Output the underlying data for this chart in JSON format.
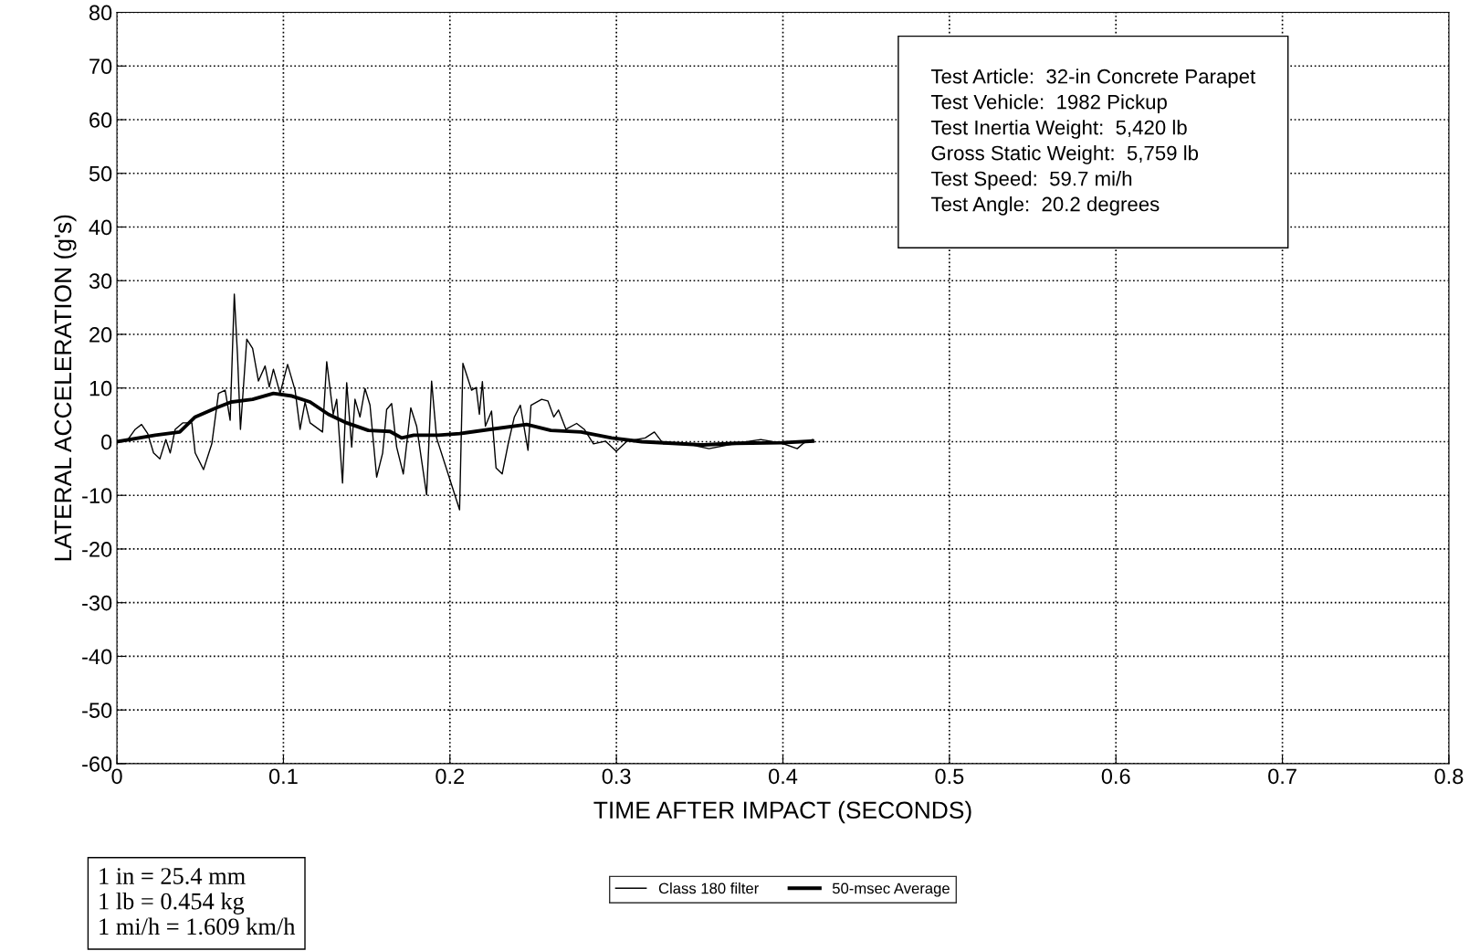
{
  "chart_data": {
    "type": "line",
    "xlabel": "TIME AFTER IMPACT (SECONDS)",
    "ylabel": "LATERAL ACCELERATION (g's)",
    "xlim": [
      0,
      0.8
    ],
    "xticks": [
      0,
      0.1,
      0.2,
      0.3,
      0.4,
      0.5,
      0.6,
      0.7,
      0.8
    ],
    "ylim": [
      -60,
      80
    ],
    "yticks": [
      -60,
      -50,
      -40,
      -30,
      -20,
      -10,
      0,
      10,
      20,
      30,
      40,
      50,
      60,
      70,
      80
    ],
    "grid": true,
    "legend": "bottom",
    "line_style": "solid",
    "series": [
      {
        "name": "Class 180 filter",
        "color": "#000000",
        "x": [
          0,
          0.0066,
          0.011,
          0.0148,
          0.0185,
          0.022,
          0.0258,
          0.0294,
          0.032,
          0.035,
          0.0395,
          0.045,
          0.047,
          0.052,
          0.057,
          0.061,
          0.065,
          0.068,
          0.0705,
          0.0724,
          0.0742,
          0.078,
          0.0815,
          0.085,
          0.089,
          0.0915,
          0.094,
          0.098,
          0.1025,
          0.107,
          0.11,
          0.113,
          0.116,
          0.1235,
          0.126,
          0.1299,
          0.132,
          0.1355,
          0.138,
          0.141,
          0.143,
          0.146,
          0.149,
          0.152,
          0.156,
          0.1596,
          0.162,
          0.165,
          0.168,
          0.172,
          0.1765,
          0.18,
          0.186,
          0.189,
          0.192,
          0.2058,
          0.2078,
          0.213,
          0.2158,
          0.2177,
          0.2195,
          0.2213,
          0.225,
          0.2277,
          0.2314,
          0.235,
          0.2387,
          0.2423,
          0.2469,
          0.2487,
          0.2551,
          0.2588,
          0.2624,
          0.2652,
          0.2697,
          0.2761,
          0.2807,
          0.2862,
          0.2935,
          0.2999,
          0.3063,
          0.3173,
          0.3228,
          0.3282,
          0.3392,
          0.3556,
          0.372,
          0.3867,
          0.3995,
          0.4086,
          0.4123,
          0.4178
        ],
        "values": [
          0,
          0.4,
          2.3,
          3.2,
          1.5,
          -2.1,
          -3.2,
          0.4,
          -2.1,
          2.3,
          3.5,
          3.5,
          -2.1,
          -5.2,
          -0.4,
          9,
          9.6,
          4,
          27.5,
          16.3,
          2.3,
          19.1,
          17.4,
          11.3,
          14.1,
          10.2,
          13.5,
          9,
          14.4,
          9.6,
          2.3,
          7.4,
          3.5,
          1.8,
          14.9,
          5.1,
          7.9,
          -7.7,
          11,
          -1,
          7.9,
          4.6,
          9.9,
          6.8,
          -6.6,
          -2.1,
          6,
          7.1,
          -1,
          -6,
          6.3,
          2.9,
          -9.9,
          11.3,
          0.7,
          -12.7,
          14.6,
          9.6,
          10.1,
          5.1,
          11.2,
          2.9,
          5.7,
          -4.9,
          -6,
          -0.4,
          4.6,
          6.8,
          -1.6,
          6.8,
          7.9,
          7.6,
          4.6,
          5.9,
          2.3,
          3.4,
          2.3,
          -0.4,
          0.1,
          -1.8,
          0.1,
          0.7,
          1.8,
          -0.4,
          -0.2,
          -1.3,
          -0.3,
          0.4,
          -0.3,
          -1.3,
          -0.3,
          0.4
        ]
      },
      {
        "name": "50-msec Average",
        "color": "#000000",
        "x": [
          0,
          0.023,
          0.0377,
          0.047,
          0.0596,
          0.0687,
          0.0815,
          0.094,
          0.1052,
          0.116,
          0.127,
          0.138,
          0.151,
          0.164,
          0.171,
          0.1783,
          0.193,
          0.2059,
          0.2241,
          0.2461,
          0.2606,
          0.2788,
          0.2971,
          0.3153,
          0.3336,
          0.3519,
          0.372,
          0.3995,
          0.4178
        ],
        "values": [
          0,
          1.2,
          1.8,
          4.6,
          6.3,
          7.4,
          7.9,
          9,
          8.5,
          7.4,
          5.1,
          3.5,
          2.1,
          1.9,
          0.7,
          1.2,
          1.2,
          1.5,
          2.3,
          3.2,
          2.1,
          1.8,
          0.7,
          0,
          -0.3,
          -0.6,
          -0.3,
          -0.2,
          0.1
        ]
      }
    ],
    "annotations": [
      "Test Article:  32-in Concrete Parapet\nTest Vehicle:  1982 Pickup\nTest Inertia Weight:  5,420 lb\nGross Static Weight:  5,759 lb\nTest Speed:  59.7 mi/h\nTest Angle:  20.2 degrees",
      "1 in = 25.4 mm\n1 lb = 0.454 kg\n1 mi/h = 1.609 km/h"
    ]
  }
}
